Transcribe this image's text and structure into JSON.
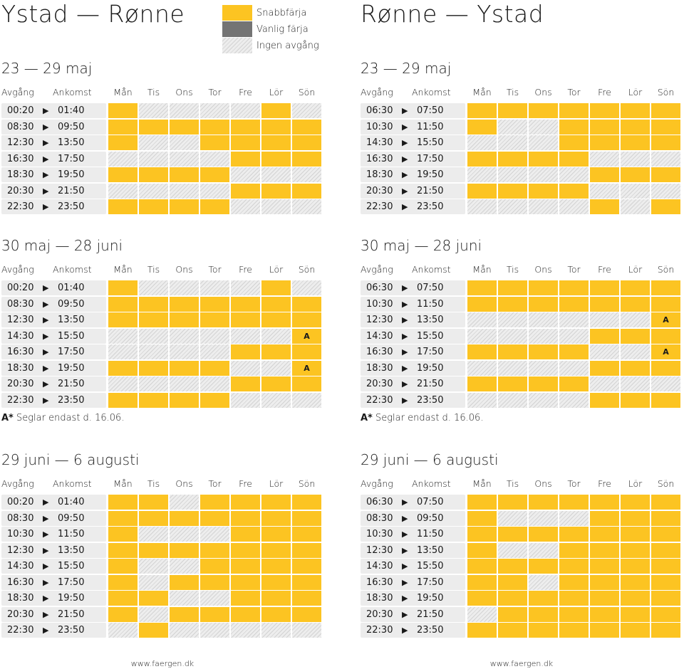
{
  "legend": {
    "items": [
      {
        "key": "fast",
        "label": "Snabbfärja"
      },
      {
        "key": "regular",
        "label": "Vanlig färja"
      },
      {
        "key": "none",
        "label": "Ingen avgång"
      }
    ]
  },
  "day_columns": [
    "Mån",
    "Tis",
    "Ons",
    "Tor",
    "Fre",
    "Lör",
    "Sön"
  ],
  "header_labels": {
    "departure": "Avgång",
    "arrival": "Ankomst"
  },
  "footnote_mark": "A*",
  "footnote_text": " Seglar endast d. 16.06.",
  "website": "www.faergen.dk",
  "directions": [
    {
      "title": "Ystad — Rønne",
      "periods": [
        {
          "label": "23 — 29 maj",
          "rows": [
            {
              "dep": "00:20",
              "arr": "01:40",
              "days": [
                "F",
                "N",
                "N",
                "N",
                "N",
                "F",
                "N"
              ]
            },
            {
              "dep": "08:30",
              "arr": "09:50",
              "days": [
                "F",
                "F",
                "F",
                "F",
                "F",
                "F",
                "F"
              ]
            },
            {
              "dep": "12:30",
              "arr": "13:50",
              "days": [
                "F",
                "N",
                "N",
                "F",
                "F",
                "F",
                "F"
              ]
            },
            {
              "dep": "16:30",
              "arr": "17:50",
              "days": [
                "N",
                "N",
                "N",
                "N",
                "F",
                "F",
                "F"
              ]
            },
            {
              "dep": "18:30",
              "arr": "19:50",
              "days": [
                "F",
                "F",
                "F",
                "F",
                "N",
                "N",
                "N"
              ]
            },
            {
              "dep": "20:30",
              "arr": "21:50",
              "days": [
                "N",
                "N",
                "N",
                "N",
                "F",
                "F",
                "F"
              ]
            },
            {
              "dep": "22:30",
              "arr": "23:50",
              "days": [
                "F",
                "F",
                "F",
                "F",
                "N",
                "N",
                "N"
              ]
            }
          ],
          "footnote": false
        },
        {
          "label": "30 maj — 28 juni",
          "rows": [
            {
              "dep": "00:20",
              "arr": "01:40",
              "days": [
                "F",
                "N",
                "N",
                "N",
                "N",
                "F",
                "N"
              ]
            },
            {
              "dep": "08:30",
              "arr": "09:50",
              "days": [
                "F",
                "F",
                "F",
                "F",
                "F",
                "F",
                "F"
              ]
            },
            {
              "dep": "12:30",
              "arr": "13:50",
              "days": [
                "F",
                "F",
                "F",
                "F",
                "F",
                "F",
                "F"
              ]
            },
            {
              "dep": "14:30",
              "arr": "15:50",
              "days": [
                "N",
                "N",
                "N",
                "N",
                "N",
                "N",
                "A"
              ]
            },
            {
              "dep": "16:30",
              "arr": "17:50",
              "days": [
                "N",
                "N",
                "N",
                "N",
                "F",
                "F",
                "F"
              ]
            },
            {
              "dep": "18:30",
              "arr": "19:50",
              "days": [
                "F",
                "F",
                "F",
                "F",
                "N",
                "N",
                "A"
              ]
            },
            {
              "dep": "20:30",
              "arr": "21:50",
              "days": [
                "N",
                "N",
                "N",
                "N",
                "F",
                "F",
                "F"
              ]
            },
            {
              "dep": "22:30",
              "arr": "23:50",
              "days": [
                "F",
                "F",
                "F",
                "F",
                "N",
                "N",
                "N"
              ]
            }
          ],
          "footnote": true
        },
        {
          "label": "29 juni — 6 augusti",
          "rows": [
            {
              "dep": "00:20",
              "arr": "01:40",
              "days": [
                "F",
                "F",
                "N",
                "F",
                "F",
                "F",
                "F"
              ]
            },
            {
              "dep": "08:30",
              "arr": "09:50",
              "days": [
                "F",
                "F",
                "F",
                "F",
                "F",
                "F",
                "F"
              ]
            },
            {
              "dep": "10:30",
              "arr": "11:50",
              "days": [
                "F",
                "N",
                "N",
                "N",
                "F",
                "F",
                "F"
              ]
            },
            {
              "dep": "12:30",
              "arr": "13:50",
              "days": [
                "F",
                "F",
                "F",
                "F",
                "F",
                "F",
                "F"
              ]
            },
            {
              "dep": "14:30",
              "arr": "15:50",
              "days": [
                "F",
                "N",
                "N",
                "F",
                "F",
                "F",
                "F"
              ]
            },
            {
              "dep": "16:30",
              "arr": "17:50",
              "days": [
                "F",
                "N",
                "F",
                "F",
                "F",
                "F",
                "F"
              ]
            },
            {
              "dep": "18:30",
              "arr": "19:50",
              "days": [
                "F",
                "F",
                "N",
                "N",
                "F",
                "F",
                "F"
              ]
            },
            {
              "dep": "20:30",
              "arr": "21:50",
              "days": [
                "F",
                "N",
                "F",
                "F",
                "F",
                "F",
                "F"
              ]
            },
            {
              "dep": "22:30",
              "arr": "23:50",
              "days": [
                "N",
                "F",
                "N",
                "N",
                "N",
                "N",
                "N"
              ]
            }
          ],
          "footnote": false
        }
      ]
    },
    {
      "title": "Rønne — Ystad",
      "periods": [
        {
          "label": "23 — 29 maj",
          "rows": [
            {
              "dep": "06:30",
              "arr": "07:50",
              "days": [
                "F",
                "F",
                "F",
                "F",
                "F",
                "F",
                "F"
              ]
            },
            {
              "dep": "10:30",
              "arr": "11:50",
              "days": [
                "F",
                "N",
                "N",
                "F",
                "F",
                "F",
                "F"
              ]
            },
            {
              "dep": "14:30",
              "arr": "15:50",
              "days": [
                "N",
                "N",
                "N",
                "F",
                "F",
                "F",
                "F"
              ]
            },
            {
              "dep": "16:30",
              "arr": "17:50",
              "days": [
                "F",
                "F",
                "F",
                "F",
                "N",
                "N",
                "N"
              ]
            },
            {
              "dep": "18:30",
              "arr": "19:50",
              "days": [
                "N",
                "N",
                "N",
                "N",
                "F",
                "F",
                "F"
              ]
            },
            {
              "dep": "20:30",
              "arr": "21:50",
              "days": [
                "F",
                "F",
                "F",
                "F",
                "N",
                "N",
                "N"
              ]
            },
            {
              "dep": "22:30",
              "arr": "23:50",
              "days": [
                "N",
                "N",
                "N",
                "N",
                "F",
                "N",
                "F"
              ]
            }
          ],
          "footnote": false
        },
        {
          "label": "30 maj — 28 juni",
          "rows": [
            {
              "dep": "06:30",
              "arr": "07:50",
              "days": [
                "F",
                "F",
                "F",
                "F",
                "F",
                "F",
                "F"
              ]
            },
            {
              "dep": "10:30",
              "arr": "11:50",
              "days": [
                "F",
                "F",
                "F",
                "F",
                "F",
                "F",
                "F"
              ]
            },
            {
              "dep": "12:30",
              "arr": "13:50",
              "days": [
                "N",
                "N",
                "N",
                "N",
                "N",
                "N",
                "A"
              ]
            },
            {
              "dep": "14:30",
              "arr": "15:50",
              "days": [
                "N",
                "N",
                "N",
                "N",
                "F",
                "F",
                "F"
              ]
            },
            {
              "dep": "16:30",
              "arr": "17:50",
              "days": [
                "F",
                "F",
                "F",
                "F",
                "N",
                "N",
                "A"
              ]
            },
            {
              "dep": "18:30",
              "arr": "19:50",
              "days": [
                "N",
                "N",
                "N",
                "N",
                "F",
                "F",
                "F"
              ]
            },
            {
              "dep": "20:30",
              "arr": "21:50",
              "days": [
                "F",
                "F",
                "F",
                "F",
                "N",
                "N",
                "N"
              ]
            },
            {
              "dep": "22:30",
              "arr": "23:50",
              "days": [
                "N",
                "N",
                "N",
                "N",
                "F",
                "F",
                "F"
              ]
            }
          ],
          "footnote": true
        },
        {
          "label": "29 juni — 6 augusti",
          "rows": [
            {
              "dep": "06:30",
              "arr": "07:50",
              "days": [
                "F",
                "F",
                "F",
                "F",
                "F",
                "F",
                "F"
              ]
            },
            {
              "dep": "08:30",
              "arr": "09:50",
              "days": [
                "F",
                "N",
                "N",
                "N",
                "F",
                "F",
                "F"
              ]
            },
            {
              "dep": "10:30",
              "arr": "11:50",
              "days": [
                "F",
                "F",
                "F",
                "F",
                "F",
                "F",
                "F"
              ]
            },
            {
              "dep": "12:30",
              "arr": "13:50",
              "days": [
                "F",
                "N",
                "N",
                "F",
                "F",
                "F",
                "F"
              ]
            },
            {
              "dep": "14:30",
              "arr": "15:50",
              "days": [
                "F",
                "F",
                "F",
                "F",
                "F",
                "F",
                "F"
              ]
            },
            {
              "dep": "16:30",
              "arr": "17:50",
              "days": [
                "F",
                "F",
                "N",
                "F",
                "F",
                "F",
                "F"
              ]
            },
            {
              "dep": "18:30",
              "arr": "19:50",
              "days": [
                "F",
                "F",
                "F",
                "F",
                "F",
                "F",
                "F"
              ]
            },
            {
              "dep": "20:30",
              "arr": "21:50",
              "days": [
                "N",
                "F",
                "F",
                "F",
                "F",
                "F",
                "F"
              ]
            },
            {
              "dep": "22:30",
              "arr": "23:50",
              "days": [
                "F",
                "F",
                "F",
                "F",
                "F",
                "F",
                "F"
              ]
            }
          ],
          "footnote": false
        }
      ]
    }
  ]
}
